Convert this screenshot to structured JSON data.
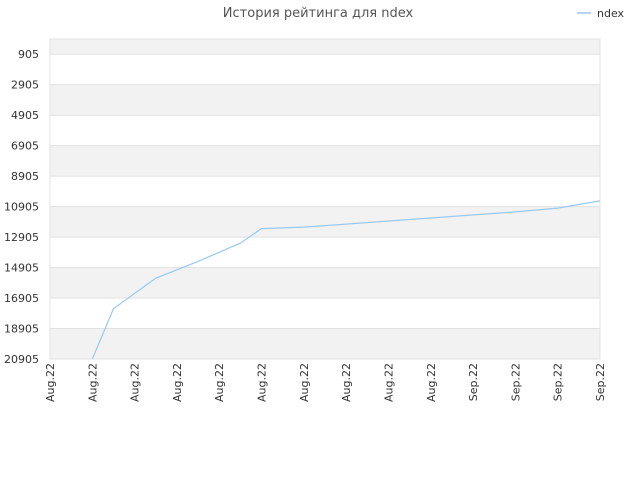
{
  "chart_data": {
    "type": "line",
    "title": "История рейтинга для ndex",
    "xlabel": "",
    "ylabel": "",
    "y_inverted": true,
    "ylim": [
      20905,
      -95
    ],
    "y_ticks": [
      905,
      2905,
      4905,
      6905,
      8905,
      10905,
      12905,
      14905,
      16905,
      18905,
      20905
    ],
    "y_tick_labels": [
      "905",
      "2905",
      "4905",
      "6905",
      "8905",
      "10905",
      "12905",
      "14905",
      "16905",
      "18905",
      "20905"
    ],
    "x_tick_labels": [
      "Aug.22",
      "Aug.22",
      "Aug.22",
      "Aug.22",
      "Aug.22",
      "Aug.22",
      "Aug.22",
      "Aug.22",
      "Aug.22",
      "Aug.22",
      "Sep.22",
      "Sep.22",
      "Sep.22",
      "Sep.22"
    ],
    "grid": true,
    "legend_position": "top-right",
    "series": [
      {
        "name": "ndex",
        "color": "#99c9f0",
        "x": [
          1,
          1.5,
          2.5,
          3.5,
          4.5,
          5,
          6,
          7,
          8,
          9,
          10,
          11,
          12,
          13
        ],
        "values": [
          20905,
          17600,
          15600,
          14500,
          13300,
          12350,
          12250,
          12050,
          11850,
          11650,
          11450,
          11250,
          11000,
          10530
        ]
      }
    ]
  }
}
